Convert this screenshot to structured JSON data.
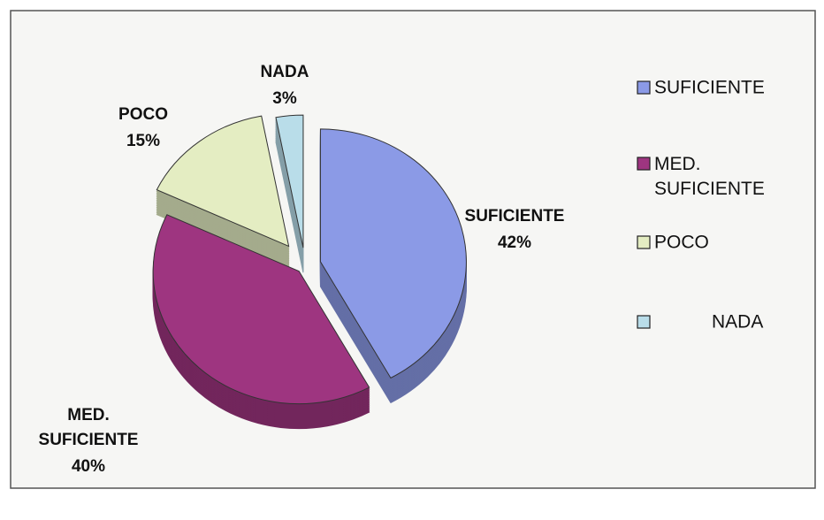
{
  "chart_data": {
    "type": "pie",
    "categories": [
      "SUFICIENTE",
      "MED. SUFICIENTE",
      "POCO",
      "NADA"
    ],
    "values": [
      42,
      40,
      15,
      3
    ],
    "value_labels": [
      "42%",
      "40%",
      "15%",
      "3%"
    ],
    "colors": [
      "#8b9ae6",
      "#9e3580",
      "#e4edc2",
      "#b9dde9"
    ],
    "legend": "right"
  }
}
